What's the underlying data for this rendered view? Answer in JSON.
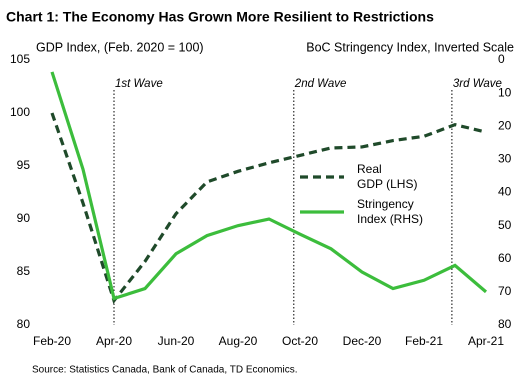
{
  "chart_data": {
    "type": "line",
    "title": "Chart 1: The Economy Has Grown More Resilient to Restrictions",
    "y_label": "GDP Index, (Feb. 2020 = 100)",
    "y2_label": "BoC Stringency Index, Inverted Scale",
    "source": "Source: Statistics Canada, Bank of Canada, TD Economics.",
    "categories": [
      "Feb-20",
      null,
      "Apr-20",
      null,
      "Jun-20",
      null,
      "Aug-20",
      null,
      "Oct-20",
      null,
      "Dec-20",
      null,
      "Feb-21",
      null,
      "Apr-21"
    ],
    "series": [
      {
        "name": "Real GDP (LHS)",
        "color": "#1f4a2a",
        "dashed": true,
        "values": [
          100,
          91.5,
          82.3,
          86,
          90.5,
          93.5,
          94.5,
          95.3,
          96,
          96.7,
          96.8,
          97.4,
          97.8,
          98.9,
          98.2
        ]
      },
      {
        "name": "Stringency Index (RHS)",
        "color": "#3cbd3c",
        "axis": "y2",
        "values": [
          3.6,
          33,
          72,
          69,
          58.5,
          53,
          50,
          48,
          52.6,
          57,
          64,
          69,
          66.5,
          62,
          70
        ]
      }
    ],
    "ylim": [
      80,
      105
    ],
    "yticks": [
      80,
      85,
      90,
      95,
      100,
      105
    ],
    "y2lim": [
      0,
      80
    ],
    "y2ticks": [
      0,
      10,
      20,
      30,
      40,
      50,
      60,
      70,
      80
    ],
    "y2_inverted": true,
    "annotations": [
      "1st Wave",
      "2nd Wave",
      "3rd Wave"
    ]
  }
}
